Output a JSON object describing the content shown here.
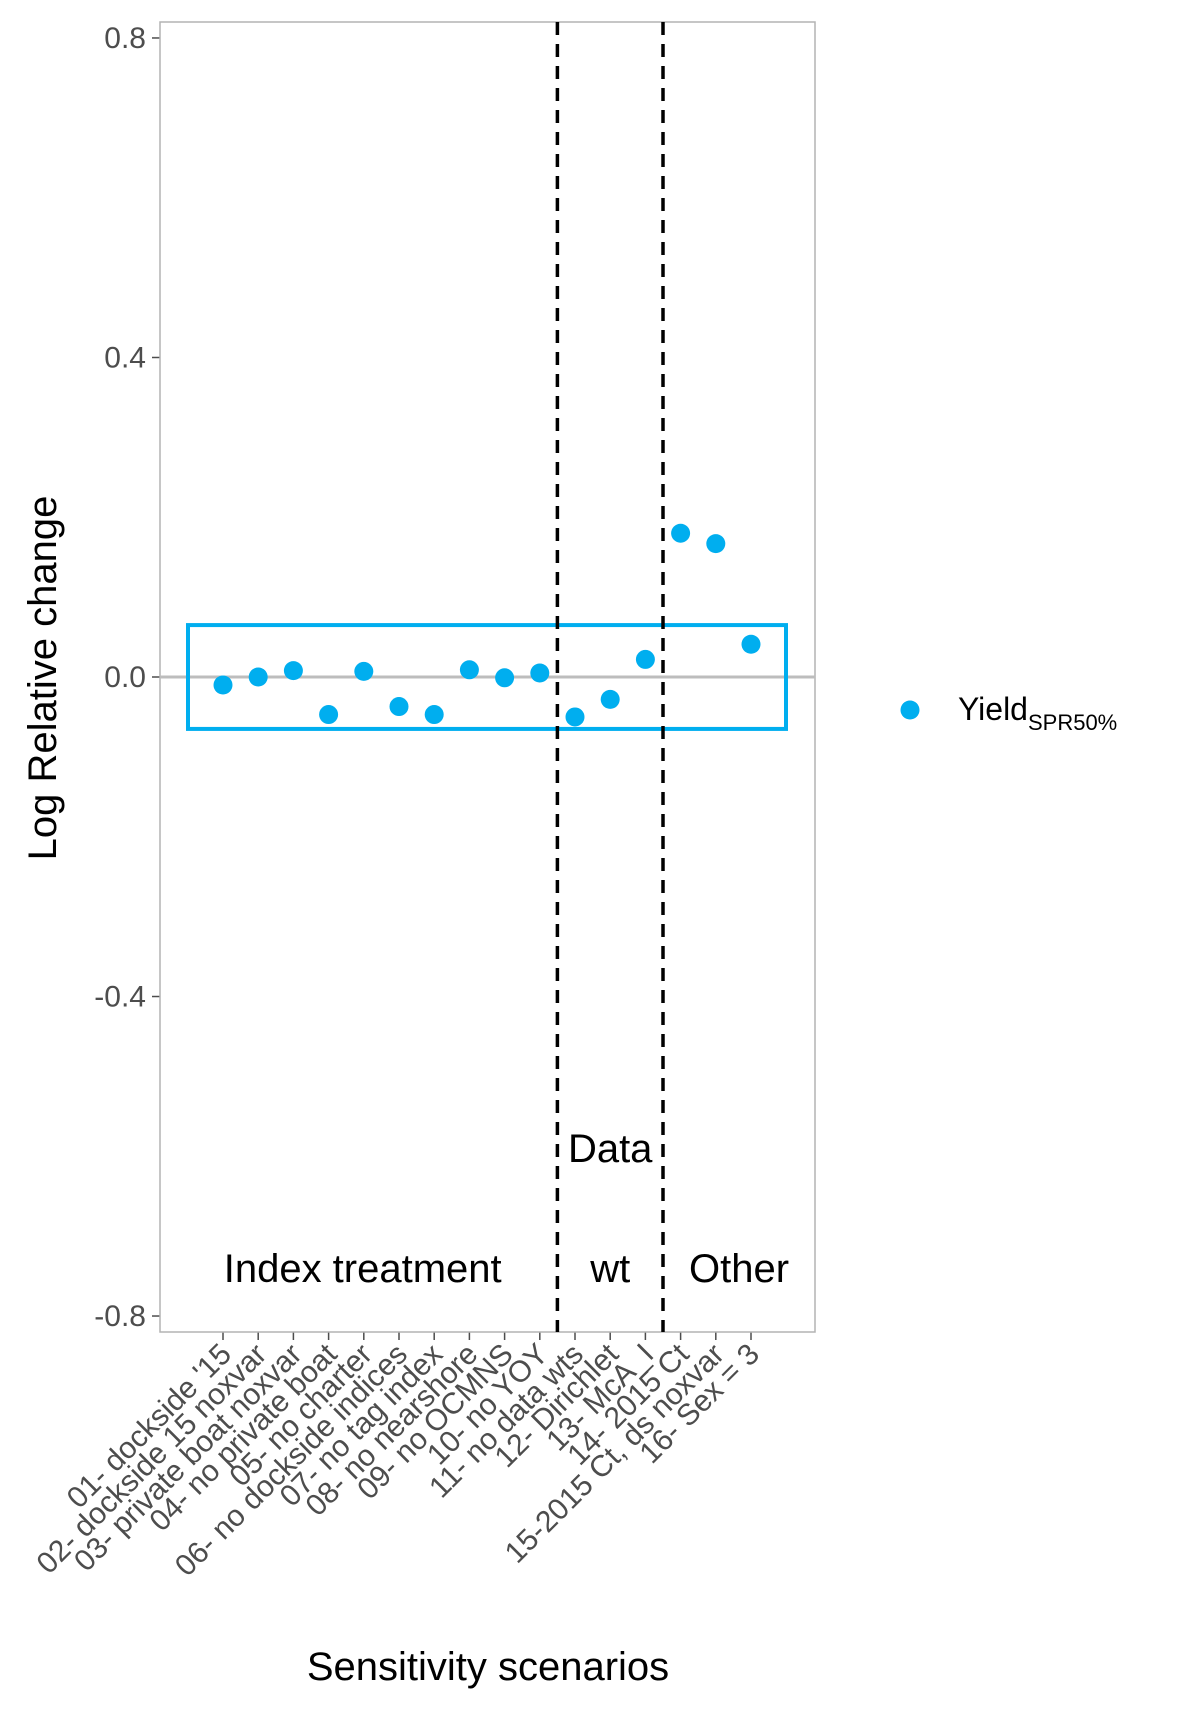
{
  "chart_data": {
    "type": "scatter",
    "xlabel": "Sensitivity scenarios",
    "ylabel": "Log Relative change",
    "ylim": [
      -0.82,
      0.82
    ],
    "y_ticks": [
      "0.8",
      "0.4",
      "0.0",
      "-0.4",
      "-0.8"
    ],
    "y_tick_values": [
      0.8,
      0.4,
      0.0,
      -0.4,
      -0.8
    ],
    "categories": [
      "01- dockside '15",
      "02- dockside 15 noxvar",
      "03- private boat noxvar",
      "04- no private boat",
      "05- no charter",
      "06- no dockside indices",
      "07- no tag index",
      "08- no nearshore",
      "09- no OCMNS",
      "10- no YOY",
      "11- no data wts",
      "12- Dirichlet",
      "13- McA_I",
      "14- 2015 Ct",
      "15-2015 Ct, ds noxvar",
      "16- Sex = 3"
    ],
    "series": [
      {
        "name_main": "Yield",
        "name_sub": "SPR50%",
        "color": "#00AEEF",
        "values": [
          -0.01,
          0.0,
          0.008,
          -0.047,
          0.007,
          -0.037,
          -0.047,
          0.009,
          -0.001,
          0.005,
          -0.05,
          -0.028,
          0.022,
          0.18,
          0.167,
          0.041
        ]
      }
    ],
    "reference_line": 0.0,
    "highlight_box": {
      "color": "#00AEEF",
      "y_range": [
        -0.065,
        0.065
      ]
    },
    "dividers_after_category": [
      10,
      13
    ],
    "regions": [
      {
        "label": "Index treatment"
      },
      {
        "label": "Data",
        "label2": "wt"
      },
      {
        "label": "Other"
      }
    ],
    "legend_position": "right",
    "grid": false
  }
}
